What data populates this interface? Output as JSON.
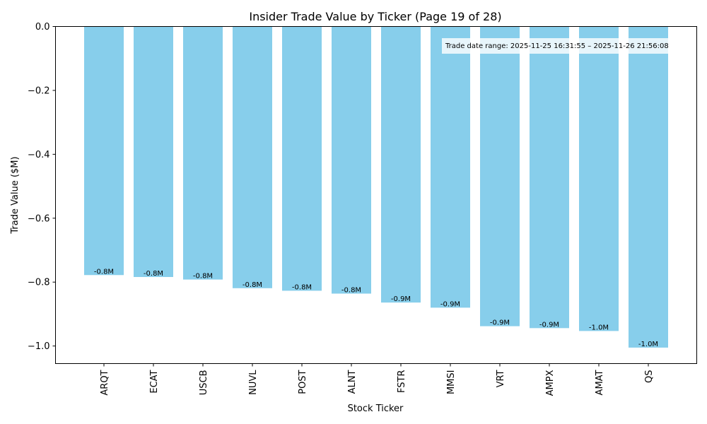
{
  "chart_data": {
    "type": "bar",
    "title": "Insider Trade Value by Ticker (Page 19 of 28)",
    "xlabel": "Stock Ticker",
    "ylabel": "Trade Value ($M)",
    "categories": [
      "ARQT",
      "ECAT",
      "USCB",
      "NUVL",
      "POST",
      "ALNT",
      "FSTR",
      "MMSI",
      "VRT",
      "AMPX",
      "AMAT",
      "QS"
    ],
    "values": [
      -0.778,
      -0.784,
      -0.792,
      -0.819,
      -0.827,
      -0.836,
      -0.864,
      -0.88,
      -0.938,
      -0.944,
      -0.953,
      -1.005
    ],
    "data_labels": [
      "-0.8M",
      "-0.8M",
      "-0.8M",
      "-0.8M",
      "-0.8M",
      "-0.8M",
      "-0.9M",
      "-0.9M",
      "-0.9M",
      "-0.9M",
      "-1.0M",
      "-1.0M"
    ],
    "ylim": [
      -1.055,
      0.0
    ],
    "yticks": [
      0.0,
      -0.2,
      -0.4,
      -0.6,
      -0.8,
      -1.0
    ],
    "ytick_labels": [
      "0.0",
      "−0.2",
      "−0.4",
      "−0.6",
      "−0.8",
      "−1.0"
    ],
    "grid": false,
    "bar_color": "#87ceeb",
    "annotation": "Trade date range: 2025-11-25 16:31:55 – 2025-11-26 21:56:08"
  }
}
